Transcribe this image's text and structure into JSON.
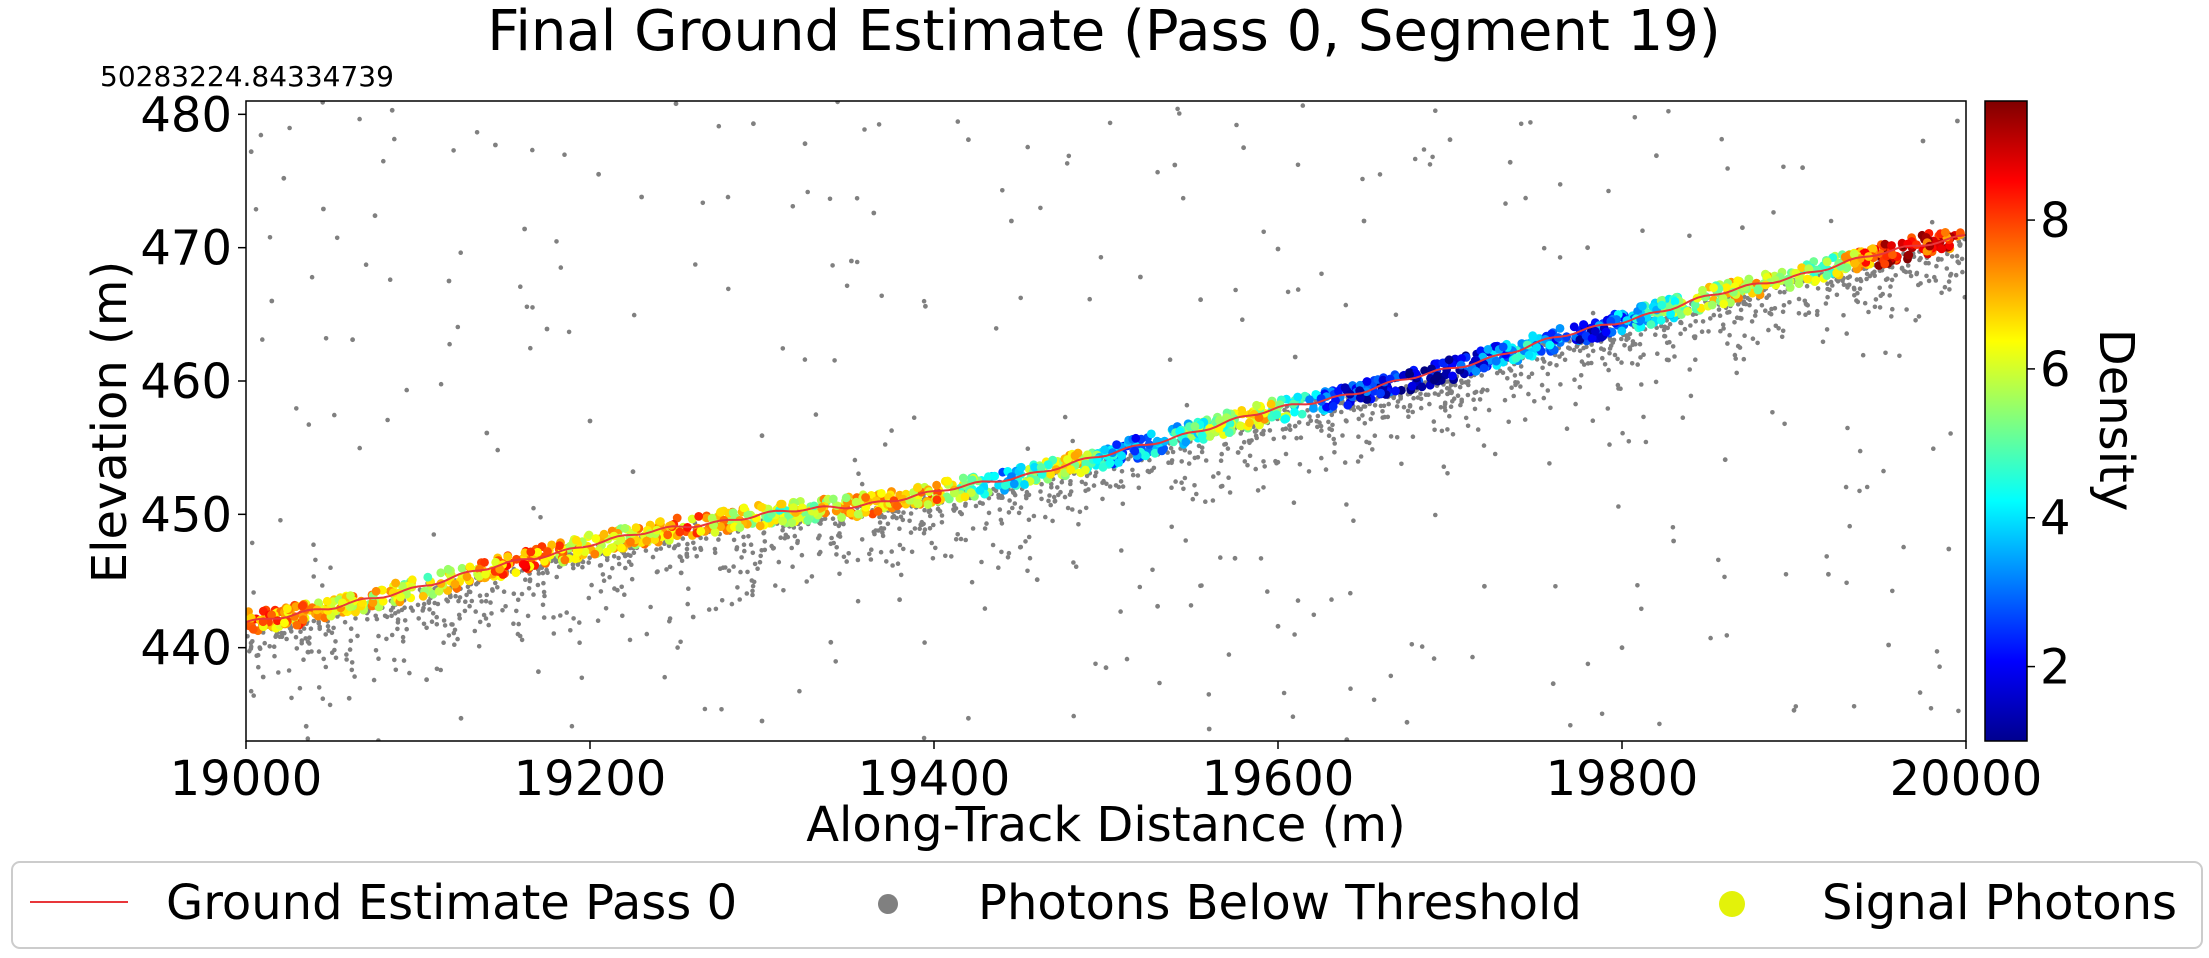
{
  "chart_data": {
    "type": "scatter",
    "title": "Final Ground Estimate (Pass 0, Segment 19)",
    "offset_text": "50283224.84334739",
    "xlabel": "Along-Track Distance (m)",
    "ylabel": "Elevation (m)",
    "xlim": [
      19000,
      20000
    ],
    "ylim": [
      433,
      481
    ],
    "x_ticks": [
      19000,
      19200,
      19400,
      19600,
      19800,
      20000
    ],
    "x_tick_labels": [
      "19000",
      "19200",
      "19400",
      "19600",
      "19800",
      "20000"
    ],
    "y_ticks": [
      440,
      450,
      460,
      470,
      480
    ],
    "y_tick_labels": [
      "440",
      "450",
      "460",
      "470",
      "480"
    ],
    "grid": false,
    "colorbar": {
      "label": "Density",
      "colormap": "jet",
      "range": [
        1,
        9.6
      ],
      "ticks": [
        2,
        4,
        6,
        8
      ],
      "tick_labels": [
        "2",
        "4",
        "6",
        "8"
      ]
    },
    "legend": {
      "placement": "bottom",
      "entries": [
        {
          "label": "Ground Estimate Pass 0",
          "marker": "line",
          "color": "#e8363a"
        },
        {
          "label": "Photons Below Threshold",
          "marker": "dot",
          "color": "#808080"
        },
        {
          "label": "Signal Photons",
          "marker": "dot",
          "color": "#e3f20a"
        }
      ]
    },
    "ground_estimate": {
      "name": "Ground Estimate Pass 0",
      "color": "#e8363a",
      "x": [
        19000,
        19050,
        19100,
        19150,
        19200,
        19250,
        19300,
        19350,
        19400,
        19450,
        19500,
        19550,
        19600,
        19650,
        19700,
        19750,
        19800,
        19850,
        19900,
        19950,
        20000
      ],
      "y": [
        442.0,
        442.9,
        444.6,
        446.2,
        447.8,
        449.0,
        450.0,
        450.6,
        451.6,
        452.9,
        454.4,
        456.2,
        457.9,
        459.3,
        460.9,
        462.8,
        464.5,
        466.3,
        467.9,
        469.5,
        471.0
      ]
    },
    "background_photons": {
      "name": "Photons Below Threshold",
      "color": "#808080",
      "sampled_points": [
        [
          19003,
          477.2
        ],
        [
          19015,
          466.0
        ],
        [
          19022,
          475.2
        ],
        [
          19045,
          472.9
        ],
        [
          19062,
          463.1
        ],
        [
          19075,
          472.4
        ],
        [
          19085,
          480.3
        ],
        [
          19118,
          467.5
        ],
        [
          19145,
          477.7
        ],
        [
          19162,
          471.4
        ],
        [
          19175,
          463.9
        ],
        [
          19205,
          475.5
        ],
        [
          19230,
          473.8
        ],
        [
          19250,
          480.8
        ],
        [
          19295,
          479.3
        ],
        [
          19300,
          455.9
        ],
        [
          19325,
          477.8
        ],
        [
          19352,
          469.0
        ],
        [
          19365,
          472.6
        ],
        [
          19395,
          465.6
        ],
        [
          19420,
          478.1
        ],
        [
          19445,
          472.0
        ],
        [
          19520,
          467.8
        ],
        [
          19540,
          476.2
        ],
        [
          19555,
          466.1
        ],
        [
          19580,
          477.5
        ],
        [
          19600,
          469.9
        ],
        [
          19610,
          461.8
        ],
        [
          19650,
          472.0
        ],
        [
          19700,
          478.1
        ],
        [
          19735,
          476.4
        ],
        [
          19780,
          470.0
        ],
        [
          19820,
          476.9
        ],
        [
          19870,
          471.5
        ],
        [
          19905,
          476.0
        ],
        [
          19975,
          478.0
        ],
        [
          19995,
          479.5
        ],
        [
          19010,
          437.8
        ],
        [
          19035,
          434.1
        ],
        [
          19060,
          436.2
        ],
        [
          19105,
          437.6
        ],
        [
          19125,
          434.7
        ],
        [
          19140,
          456.1
        ],
        [
          19170,
          438.2
        ],
        [
          19200,
          457.0
        ],
        [
          19225,
          453.2
        ],
        [
          19260,
          442.3
        ],
        [
          19300,
          434.5
        ],
        [
          19340,
          440.4
        ],
        [
          19380,
          443.6
        ],
        [
          19420,
          434.7
        ],
        [
          19460,
          445.1
        ],
        [
          19500,
          438.5
        ],
        [
          19530,
          443.1
        ],
        [
          19560,
          433.9
        ],
        [
          19575,
          446.7
        ],
        [
          19600,
          441.6
        ],
        [
          19640,
          433.1
        ],
        [
          19675,
          434.4
        ],
        [
          19720,
          444.6
        ],
        [
          19760,
          437.3
        ],
        [
          19800,
          440.0
        ],
        [
          19830,
          448.0
        ],
        [
          19860,
          454.1
        ],
        [
          19900,
          435.3
        ],
        [
          19920,
          445.5
        ],
        [
          19955,
          440.2
        ],
        [
          19990,
          447.4
        ]
      ]
    },
    "signal_photons": {
      "name": "Signal Photons",
      "color_by": "Density",
      "description_points": [
        [
          19010,
          442.3,
          7.4
        ],
        [
          19050,
          443.0,
          6.8
        ],
        [
          19100,
          444.6,
          5.8
        ],
        [
          19160,
          446.6,
          7.6
        ],
        [
          19210,
          448.1,
          6.2
        ],
        [
          19260,
          449.3,
          7.3
        ],
        [
          19310,
          450.1,
          5.6
        ],
        [
          19360,
          450.9,
          6.9
        ],
        [
          19400,
          451.6,
          7.0
        ],
        [
          19440,
          452.6,
          3.8
        ],
        [
          19480,
          453.8,
          6.6
        ],
        [
          19510,
          454.6,
          2.8
        ],
        [
          19545,
          455.8,
          4.5
        ],
        [
          19590,
          457.4,
          6.4
        ],
        [
          19640,
          459.0,
          2.2
        ],
        [
          19700,
          460.8,
          1.6
        ],
        [
          19745,
          462.6,
          3.9
        ],
        [
          19780,
          463.3,
          2.0
        ],
        [
          19820,
          465.0,
          4.5
        ],
        [
          19870,
          466.7,
          6.6
        ],
        [
          19920,
          468.4,
          5.2
        ],
        [
          19955,
          469.4,
          8.9
        ],
        [
          19990,
          470.7,
          8.1
        ]
      ]
    }
  }
}
